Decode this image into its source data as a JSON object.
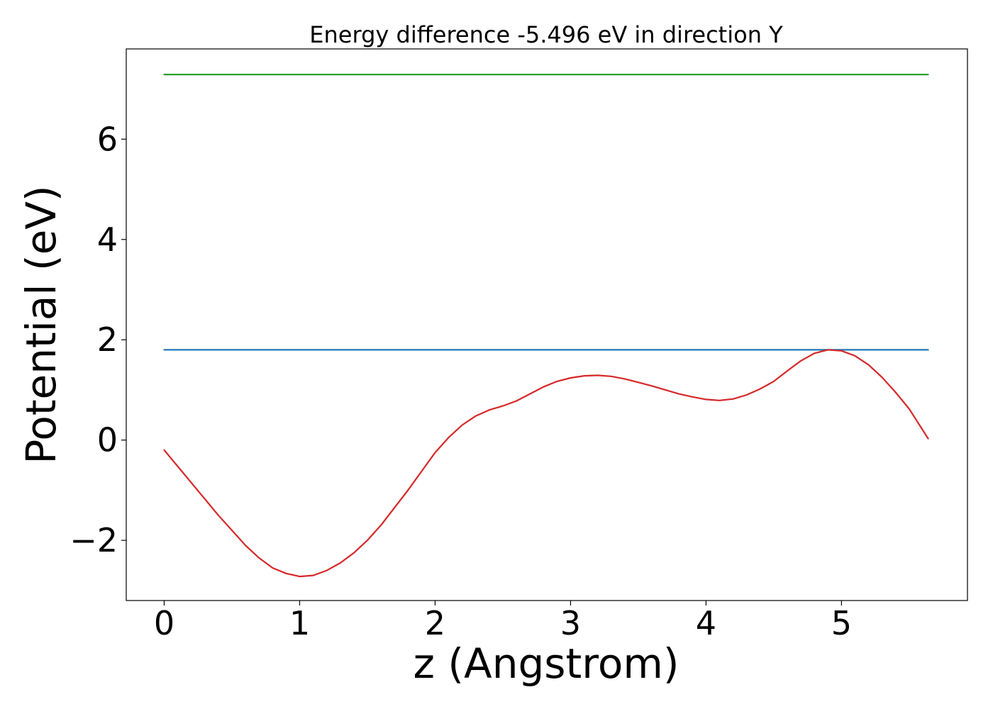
{
  "chart_data": {
    "type": "line",
    "title": "Energy difference -5.496 eV in direction Y",
    "xlabel": "z (Angstrom)",
    "ylabel": "Potential (eV)",
    "xlim": [
      -0.28,
      5.93
    ],
    "ylim": [
      -3.2,
      7.8
    ],
    "xticks": [
      0,
      1,
      2,
      3,
      4,
      5
    ],
    "yticks": [
      -2,
      0,
      2,
      4,
      6
    ],
    "xtick_labels": [
      "0",
      "1",
      "2",
      "3",
      "4",
      "5"
    ],
    "ytick_labels": [
      "−2",
      "0",
      "2",
      "4",
      "6"
    ],
    "grid": false,
    "series": [
      {
        "color": "#2ca02c",
        "x": [
          0,
          5.64
        ],
        "y": [
          7.29,
          7.29
        ]
      },
      {
        "color": "#1f77b4",
        "x": [
          0,
          5.64
        ],
        "y": [
          1.8,
          1.8
        ]
      },
      {
        "color": "#d62728",
        "x": [
          0,
          0.2,
          0.4,
          0.5,
          0.6,
          0.7,
          0.8,
          0.9,
          1.0,
          1.1,
          1.2,
          1.3,
          1.4,
          1.5,
          1.6,
          1.8,
          2.0,
          2.1,
          2.2,
          2.3,
          2.4,
          2.5,
          2.6,
          2.7,
          2.8,
          2.9,
          3.0,
          3.1,
          3.2,
          3.3,
          3.4,
          3.5,
          3.6,
          3.7,
          3.8,
          3.9,
          4.0,
          4.1,
          4.2,
          4.3,
          4.4,
          4.5,
          4.6,
          4.7,
          4.8,
          4.9,
          5.0,
          5.1,
          5.2,
          5.3,
          5.4,
          5.5,
          5.64
        ],
        "y": [
          -0.2,
          -0.85,
          -1.5,
          -1.8,
          -2.1,
          -2.35,
          -2.55,
          -2.66,
          -2.72,
          -2.7,
          -2.6,
          -2.45,
          -2.25,
          -2.0,
          -1.7,
          -1.0,
          -0.25,
          0.05,
          0.3,
          0.48,
          0.6,
          0.68,
          0.78,
          0.92,
          1.06,
          1.17,
          1.24,
          1.28,
          1.29,
          1.27,
          1.22,
          1.15,
          1.08,
          1.0,
          0.92,
          0.86,
          0.81,
          0.79,
          0.82,
          0.9,
          1.02,
          1.17,
          1.38,
          1.58,
          1.73,
          1.8,
          1.78,
          1.68,
          1.5,
          1.25,
          0.95,
          0.62,
          0.03
        ]
      }
    ]
  }
}
